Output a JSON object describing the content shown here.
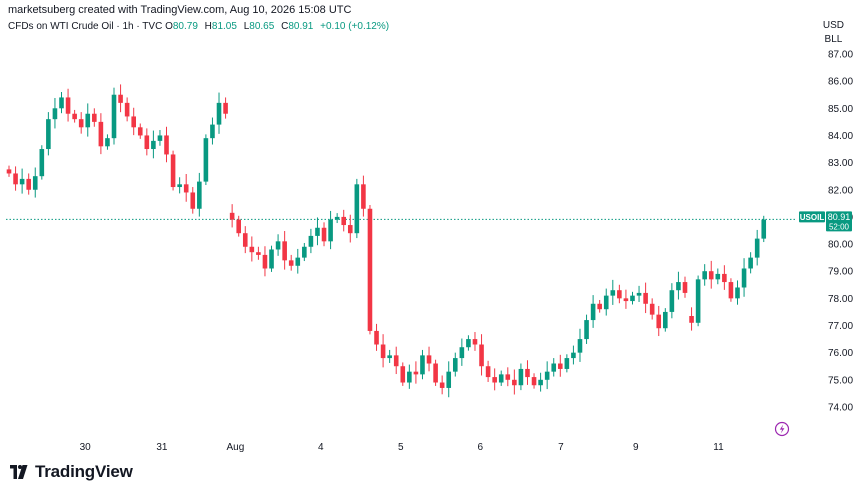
{
  "header": {
    "creator": "marketsuberg created with TradingView.com, Aug 10, 2026 15:08 UTC",
    "symbol_line": "CFDs on WTI Crude Oil · 1h · TVC",
    "ohlc": [
      {
        "key": "O",
        "value": "80.79"
      },
      {
        "key": "H",
        "value": "81.05"
      },
      {
        "key": "L",
        "value": "80.65"
      },
      {
        "key": "C",
        "value": "80.91"
      }
    ],
    "change": "+0.10 (+0.12%)"
  },
  "currency": {
    "line1": "USD",
    "line2": "BLL"
  },
  "price_tag": {
    "symbol": "USOIL",
    "price": "80.91",
    "countdown": "52:00"
  },
  "brand": {
    "name": "TradingView"
  },
  "colors": {
    "up": "#089981",
    "down": "#f23645",
    "text": "#131722",
    "axis_text": "#131722",
    "dotted_line": "#089981"
  },
  "chart_data": {
    "type": "candlestick",
    "title": "CFDs on WTI Crude Oil · 1h · TVC",
    "xlabel": "",
    "ylabel": "",
    "ylim": [
      73.4,
      87.6
    ],
    "y_ticks": [
      "87.00",
      "86.00",
      "85.00",
      "84.00",
      "83.00",
      "82.00",
      "81.00",
      "80.00",
      "79.00",
      "78.00",
      "77.00",
      "76.00",
      "75.00",
      "74.00"
    ],
    "x_ticks": [
      {
        "label": "30",
        "bar": 11.6
      },
      {
        "label": "31",
        "bar": 23.3
      },
      {
        "label": "Aug",
        "bar": 34.5
      },
      {
        "label": "4",
        "bar": 47.5
      },
      {
        "label": "5",
        "bar": 59.7
      },
      {
        "label": "6",
        "bar": 71.8
      },
      {
        "label": "7",
        "bar": 84.1
      },
      {
        "label": "9",
        "bar": 95.5
      },
      {
        "label": "11",
        "bar": 108.1
      }
    ],
    "last_price": 80.91,
    "gap_after": [
      33,
      103
    ],
    "closes": [
      82.6,
      82.2,
      82.4,
      82.0,
      82.5,
      83.5,
      84.6,
      85.0,
      85.4,
      84.8,
      84.6,
      84.3,
      84.8,
      84.5,
      83.6,
      83.9,
      85.5,
      85.2,
      84.7,
      84.3,
      84.0,
      83.5,
      83.8,
      84.0,
      83.3,
      82.1,
      82.2,
      81.9,
      81.3,
      82.3,
      83.9,
      84.4,
      85.2,
      84.8,
      80.9,
      80.4,
      79.9,
      79.7,
      79.6,
      79.1,
      79.8,
      80.1,
      79.4,
      79.2,
      79.5,
      79.9,
      80.3,
      80.6,
      80.1,
      80.9,
      81.0,
      80.7,
      80.4,
      82.2,
      81.3,
      76.8,
      76.3,
      75.8,
      75.9,
      75.5,
      74.9,
      75.3,
      75.2,
      75.9,
      75.6,
      74.9,
      74.7,
      75.3,
      75.8,
      76.2,
      76.5,
      76.3,
      75.5,
      75.1,
      74.9,
      75.2,
      75.0,
      74.8,
      75.4,
      75.1,
      74.8,
      75.0,
      75.3,
      75.6,
      75.4,
      75.8,
      76.0,
      76.5,
      77.2,
      77.8,
      77.6,
      78.1,
      78.3,
      78.0,
      77.9,
      78.1,
      78.2,
      77.8,
      77.4,
      76.9,
      77.5,
      78.3,
      78.6,
      78.2,
      77.1,
      78.7,
      79.0,
      78.7,
      78.9,
      78.6,
      78.0,
      78.4,
      79.1,
      79.5,
      80.2,
      80.9
    ]
  }
}
